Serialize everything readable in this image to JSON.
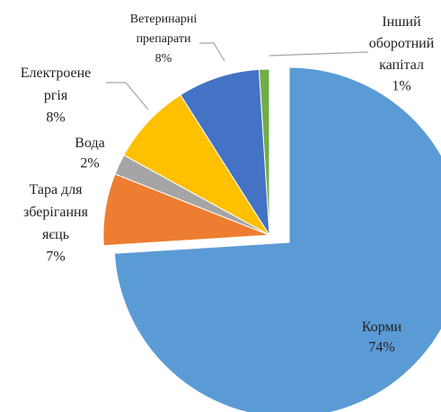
{
  "chart_data": {
    "type": "pie",
    "categories": [
      "Корми",
      "Тара для\nзберігання\nяєць",
      "Вода",
      "Електроене\nргія",
      "Ветеринарні\nпрепарати",
      "Інший\nоборотний\nкапітал"
    ],
    "values": [
      74,
      7,
      2,
      8,
      8,
      1
    ],
    "value_labels": [
      "74%",
      "7%",
      "2%",
      "8%",
      "8%",
      "1%"
    ],
    "colors": [
      "#5b9bd5",
      "#ed7d31",
      "#a5a5a5",
      "#ffc000",
      "#4472c4",
      "#70ad47"
    ]
  }
}
